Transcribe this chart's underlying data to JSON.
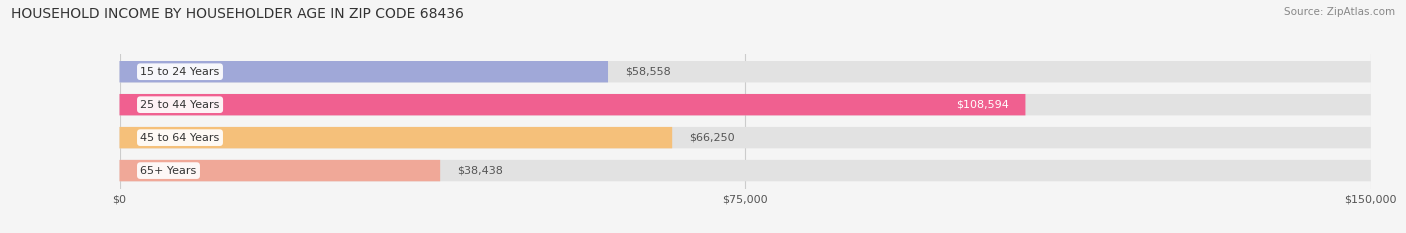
{
  "title": "HOUSEHOLD INCOME BY HOUSEHOLDER AGE IN ZIP CODE 68436",
  "source": "Source: ZipAtlas.com",
  "categories": [
    "15 to 24 Years",
    "25 to 44 Years",
    "45 to 64 Years",
    "65+ Years"
  ],
  "values": [
    58558,
    108594,
    66250,
    38438
  ],
  "bar_colors": [
    "#a0a8d8",
    "#f06090",
    "#f5c07a",
    "#f0a898"
  ],
  "value_labels": [
    "$58,558",
    "$108,594",
    "$66,250",
    "$38,438"
  ],
  "label_inside": [
    false,
    true,
    false,
    false
  ],
  "label_colors_inside": [
    "#555555",
    "#ffffff",
    "#555555",
    "#555555"
  ],
  "xlim": [
    0,
    150000
  ],
  "xtick_labels": [
    "$0",
    "$75,000",
    "$150,000"
  ],
  "xtick_values": [
    0,
    75000,
    150000
  ],
  "title_fontsize": 10,
  "source_fontsize": 7.5,
  "background_color": "#f5f5f5",
  "bar_bg_fill": "#e2e2e2",
  "bar_height": 0.65,
  "label_box_color": "#ffffff"
}
